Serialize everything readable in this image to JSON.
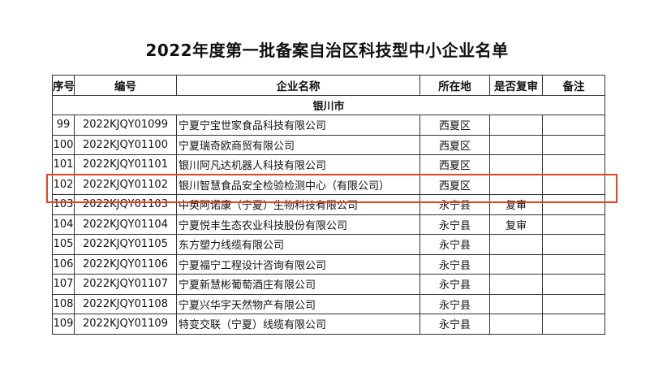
{
  "title": "2022年度第一批备案自治区科技型中小企业名单",
  "headers": [
    "序号",
    "编号",
    "企业名称",
    "所在地",
    "是否复审",
    "备注"
  ],
  "city": "银川市",
  "rows": [
    {
      "no": "99",
      "code": "2022KJQY01099",
      "name": "宁夏宁宝世家食品科技有限公司",
      "loc": "西夏区",
      "review": "",
      "note": ""
    },
    {
      "no": "100",
      "code": "2022KJQY01100",
      "name": "宁夏瑞奇欧商贸有限公司",
      "loc": "西夏区",
      "review": "",
      "note": ""
    },
    {
      "no": "101",
      "code": "2022KJQY01101",
      "name": "银川阿凡达机器人科技有限公司",
      "loc": "西夏区",
      "review": "",
      "note": ""
    },
    {
      "no": "102",
      "code": "2022KJQY01102",
      "name": "银川智慧食品安全检验检测中心（有限公司）",
      "loc": "西夏区",
      "review": "",
      "note": ""
    },
    {
      "no": "103",
      "code": "2022KJQY01103",
      "name": "中英阿诺康（宁夏）生物科技有限公司",
      "loc": "永宁县",
      "review": "复审",
      "note": ""
    },
    {
      "no": "104",
      "code": "2022KJQY01104",
      "name": "宁夏悦丰生态农业科技股份有限公司",
      "loc": "永宁县",
      "review": "复审",
      "note": ""
    },
    {
      "no": "105",
      "code": "2022KJQY01105",
      "name": "东方塑力线缆有限公司",
      "loc": "永宁县",
      "review": "",
      "note": ""
    },
    {
      "no": "106",
      "code": "2022KJQY01106",
      "name": "宁夏福宁工程设计咨询有限公司",
      "loc": "永宁县",
      "review": "",
      "note": ""
    },
    {
      "no": "107",
      "code": "2022KJQY01107",
      "name": "宁夏新慧彬葡萄酒庄有限公司",
      "loc": "永宁县",
      "review": "",
      "note": ""
    },
    {
      "no": "108",
      "code": "2022KJQY01108",
      "name": "宁夏兴华宇天然物产有限公司",
      "loc": "永宁县",
      "review": "",
      "note": ""
    },
    {
      "no": "109",
      "code": "2022KJQY01109",
      "name": "特变交联（宁夏）线缆有限公司",
      "loc": "永宁县",
      "review": "",
      "note": ""
    }
  ],
  "highlight_color": "#e8431f",
  "highlighted_row": "102"
}
